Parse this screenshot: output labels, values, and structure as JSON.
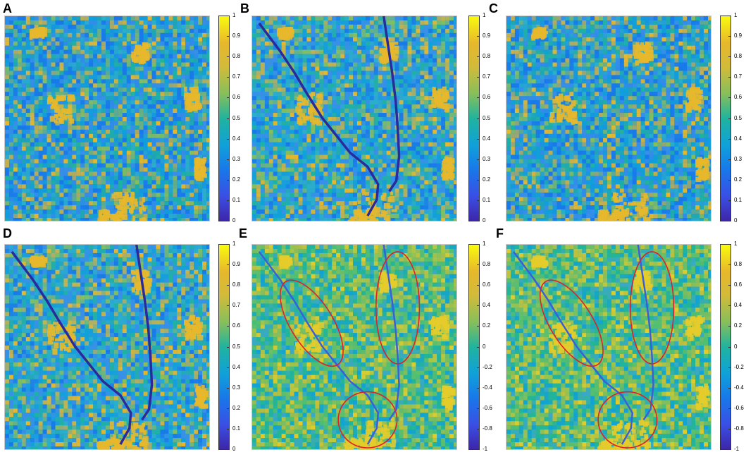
{
  "panels": [
    {
      "letter": "A",
      "scale": "0to1",
      "circles": false
    },
    {
      "letter": "B",
      "scale": "0to1",
      "circles": false
    },
    {
      "letter": "C",
      "scale": "0to1",
      "circles": false
    },
    {
      "letter": "D",
      "scale": "0to1",
      "circles": false
    },
    {
      "letter": "E",
      "scale": "-1to1",
      "circles": true
    },
    {
      "letter": "F",
      "scale": "-1to1",
      "circles": true
    }
  ],
  "colorbars": {
    "scale_0to1": {
      "ticks": [
        "1",
        "0.9",
        "0.8",
        "0.7",
        "0.6",
        "0.5",
        "0.4",
        "0.3",
        "0.2",
        "0.1",
        "0"
      ]
    },
    "scale_neg1to1": {
      "ticks": [
        "1",
        "0.8",
        "0.6",
        "0.4",
        "0.2",
        "0",
        "-0.2",
        "-0.4",
        "-0.6",
        "-0.8",
        "-1"
      ]
    }
  },
  "colors": {
    "colormap": [
      "#f9fb0e",
      "#e7b82b",
      "#d1bb3a",
      "#86bf5b",
      "#20b39e",
      "#10a1d9",
      "#1878e9",
      "#3a4fe5",
      "#3d26a8"
    ],
    "circle": "#e0202a",
    "river": "#2a2a9a"
  }
}
